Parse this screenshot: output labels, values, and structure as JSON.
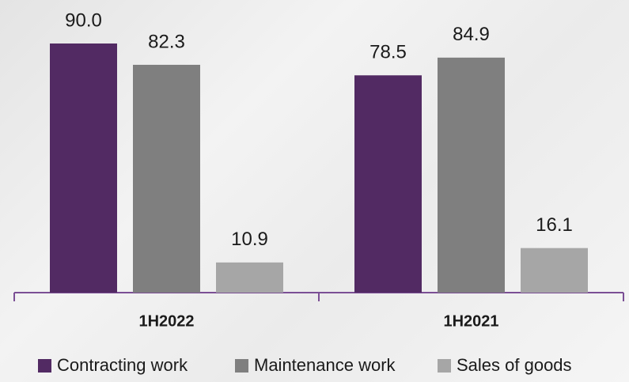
{
  "chart_data": {
    "type": "bar",
    "categories": [
      "1H2022",
      "1H2021"
    ],
    "series": [
      {
        "name": "Contracting work",
        "color": "#522a63",
        "values": [
          90.0,
          78.5
        ],
        "value_labels": [
          "90.0",
          "78.5"
        ]
      },
      {
        "name": "Maintenance work",
        "color": "#7f7f7f",
        "values": [
          82.3,
          84.9
        ],
        "value_labels": [
          "82.3",
          "84.9"
        ]
      },
      {
        "name": "Sales of goods",
        "color": "#a6a6a6",
        "values": [
          10.9,
          16.1
        ],
        "value_labels": [
          "10.9",
          "16.1"
        ]
      }
    ],
    "ylim": [
      0,
      90
    ],
    "legend": "bottom"
  }
}
